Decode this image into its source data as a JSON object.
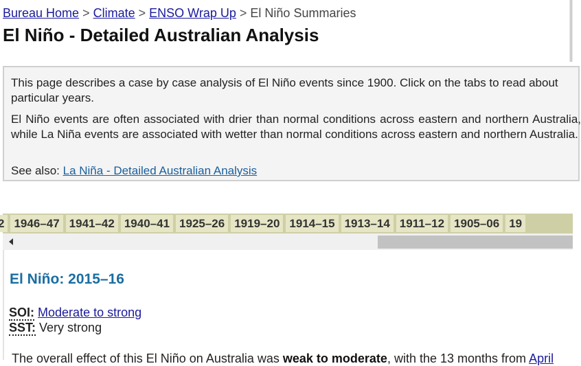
{
  "breadcrumb": {
    "items": [
      "Bureau Home",
      "Climate",
      "ENSO Wrap Up"
    ],
    "separator": ">",
    "current": "El Niño Summaries"
  },
  "page_title": "El Niño - Detailed Australian Analysis",
  "intro": {
    "p1": "This page describes a case by case analysis of El Niño events since 1900. Click on the tabs to read about particular years.",
    "p2": "El Niño events are often associated with drier than normal conditions across eastern and northern Australia, while La Niña events are associated with wetter than normal conditions across eastern and northern Australia.",
    "see_also_label": "See also:",
    "see_also_link": "La Niña - Detailed Australian Analysis"
  },
  "tabs": [
    "2",
    "1946–47",
    "1941–42",
    "1940–41",
    "1925–26",
    "1919–20",
    "1914–15",
    "1913–14",
    "1911–12",
    "1905–06",
    "19"
  ],
  "event": {
    "title": "El Niño: 2015–16",
    "soi_label": "SOI:",
    "soi_value": "Moderate to strong",
    "sst_label": "SST:",
    "sst_value": "Very strong",
    "summary_start": "The overall effect of this El Niño on Australia was",
    "summary_bold": "weak to moderate",
    "summary_mid": ", with the 13 months from",
    "summary_link": "April"
  },
  "colors": {
    "tab_bar": "#cfcfa6",
    "tab": "#e6e6c6",
    "link": "#1a1a9c",
    "heading_accent": "#1a6da0",
    "intro_bg": "#f4f4f4"
  }
}
